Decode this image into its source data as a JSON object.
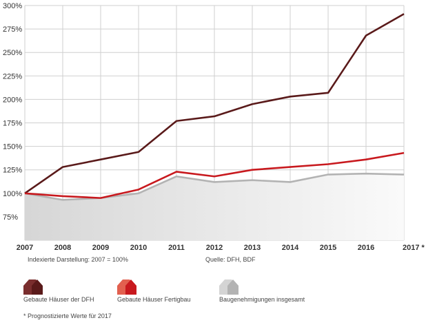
{
  "chart_data": {
    "type": "line",
    "title": "",
    "xlabel": "",
    "ylabel": "",
    "x": [
      "2007",
      "2008",
      "2009",
      "2010",
      "2011",
      "2012",
      "2013",
      "2014",
      "2015",
      "2016",
      "2017 *"
    ],
    "y_ticks": [
      "300%",
      "275%",
      "250%",
      "225%",
      "200%",
      "175%",
      "150%",
      "125%",
      "100%",
      "75%"
    ],
    "ylim": [
      50,
      300
    ],
    "grid": true,
    "series": [
      {
        "name": "Gebaute Häuser der DFH",
        "color": "#5a1a1a",
        "values": [
          100,
          128,
          136,
          144,
          177,
          182,
          195,
          203,
          207,
          268,
          291
        ]
      },
      {
        "name": "Gebaute Häuser Fertigbau",
        "color": "#c8191e",
        "values": [
          100,
          97,
          95,
          104,
          123,
          118,
          125,
          128,
          131,
          136,
          143
        ]
      },
      {
        "name": "Baugenehmigungen insgesamt",
        "color": "#b3b3b3",
        "fill": true,
        "values": [
          100,
          93,
          95,
          100,
          118,
          112,
          114,
          112,
          120,
          121,
          120
        ]
      }
    ]
  },
  "notes": {
    "index_note": "Indexierte Darstellung: 2007 = 100%",
    "source": "Quelle: DFH, BDF",
    "forecast_note": "* Prognostizierte Werte für 2017"
  },
  "legend": [
    {
      "label": "Gebaute Häuser der DFH",
      "icon": "house-icon",
      "color": "#5a1a1a",
      "shade": "#7a2e2e"
    },
    {
      "label": "Gebaute Häuser Fertigbau",
      "icon": "house-icon",
      "color": "#c8191e",
      "shade": "#e2604f"
    },
    {
      "label": "Baugenehmigungen insgesamt",
      "icon": "house-icon",
      "color": "#b3b3b3",
      "shade": "#d4d4d4"
    }
  ]
}
